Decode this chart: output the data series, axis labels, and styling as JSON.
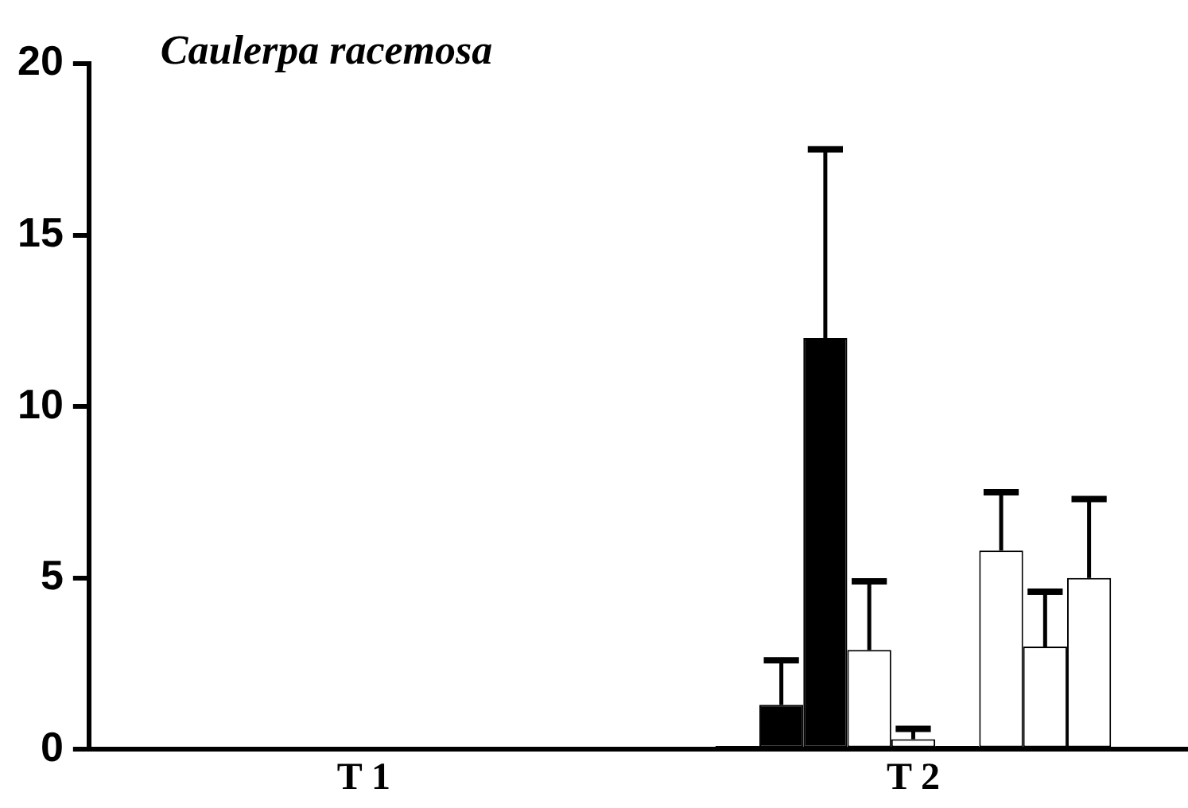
{
  "chart_data": {
    "type": "bar",
    "title": "Caulerpa racemosa",
    "categories": [
      "T 1",
      "T 2"
    ],
    "series": [
      {
        "color": "#000000",
        "values": [
          0,
          0.1
        ]
      },
      {
        "color": "#000000",
        "values": [
          0,
          1.3
        ],
        "errors": [
          null,
          [
            1.3,
            2.6
          ]
        ]
      },
      {
        "color": "#000000",
        "values": [
          0,
          12.0
        ],
        "errors": [
          null,
          [
            12.0,
            17.5
          ]
        ]
      },
      {
        "color": "#ffffff",
        "values": [
          0,
          2.9
        ],
        "errors": [
          null,
          [
            2.9,
            4.9
          ]
        ]
      },
      {
        "color": "#ffffff",
        "values": [
          0,
          0.3
        ],
        "errors": [
          null,
          [
            0.3,
            0.6
          ]
        ]
      },
      {
        "color": "#000000",
        "values": [
          0,
          0.1
        ]
      },
      {
        "color": "#ffffff",
        "values": [
          0,
          5.8
        ],
        "errors": [
          null,
          [
            5.8,
            7.5
          ]
        ]
      },
      {
        "color": "#ffffff",
        "values": [
          0,
          3.0
        ],
        "errors": [
          null,
          [
            3.0,
            4.6
          ]
        ]
      },
      {
        "color": "#ffffff",
        "values": [
          0,
          5.0
        ],
        "errors": [
          null,
          [
            5.0,
            7.3
          ]
        ]
      }
    ],
    "ylim": [
      0,
      20
    ],
    "yticks": [
      0,
      5,
      10,
      15,
      20
    ],
    "grid": false,
    "legend": false
  }
}
